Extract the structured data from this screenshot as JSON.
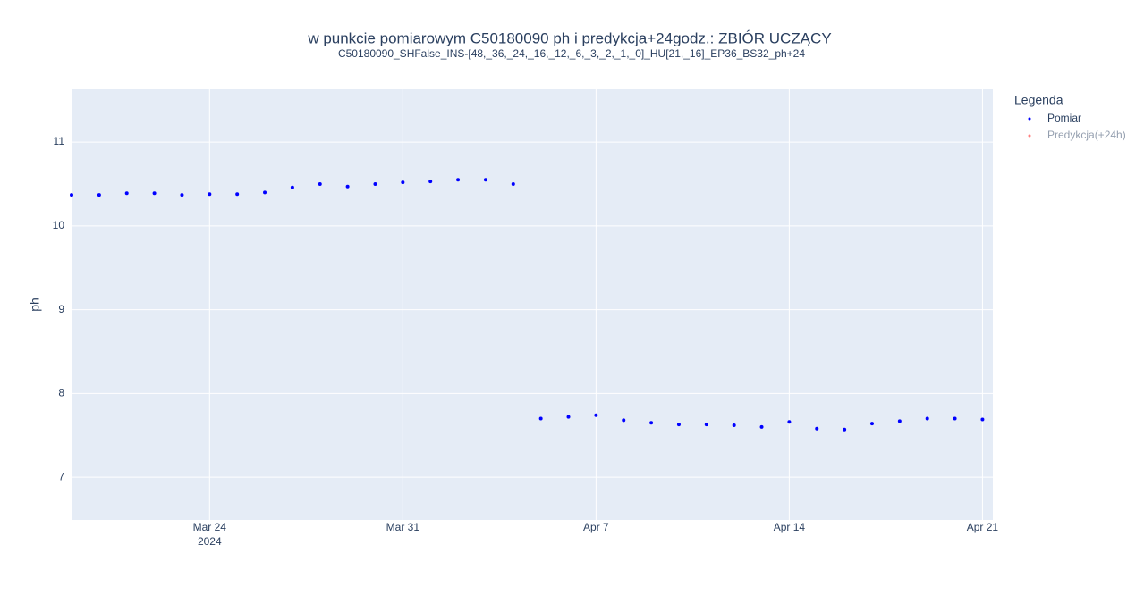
{
  "chart_data": {
    "type": "scatter",
    "title": "w punkcie pomiarowym C50180090 ph i predykcja+24godz.: ZBIÓR UCZĄCY",
    "subtitle": "C50180090_SHFalse_INS-[48,_36,_24,_16,_12,_6,_3,_2,_1,_0]_HU[21,_16]_EP36_BS32_ph+24",
    "y_label": "ph",
    "legend_title": "Legenda",
    "x": [
      "2024-03-19",
      "2024-03-20",
      "2024-03-21",
      "2024-03-22",
      "2024-03-23",
      "2024-03-24",
      "2024-03-25",
      "2024-03-26",
      "2024-03-27",
      "2024-03-28",
      "2024-03-29",
      "2024-03-30",
      "2024-03-31",
      "2024-04-01",
      "2024-04-02",
      "2024-04-03",
      "2024-04-04",
      "2024-04-05",
      "2024-04-06",
      "2024-04-07",
      "2024-04-08",
      "2024-04-09",
      "2024-04-10",
      "2024-04-11",
      "2024-04-12",
      "2024-04-13",
      "2024-04-14",
      "2024-04-15",
      "2024-04-16",
      "2024-04-17",
      "2024-04-18",
      "2024-04-19",
      "2024-04-20",
      "2024-04-21"
    ],
    "series": [
      {
        "name": "Pomiar",
        "color": "#0000ff",
        "visible": true,
        "values": [
          10.37,
          10.37,
          10.39,
          10.39,
          10.37,
          10.38,
          10.38,
          10.4,
          10.46,
          10.5,
          10.47,
          10.5,
          10.52,
          10.53,
          10.55,
          10.55,
          10.5,
          7.7,
          7.72,
          7.74,
          7.68,
          7.65,
          7.63,
          7.63,
          7.62,
          7.6,
          7.66,
          7.58,
          7.57,
          7.64,
          7.67,
          7.7,
          7.7,
          7.69
        ]
      },
      {
        "name": "Predykcja(+24h)",
        "color": "#ff0000",
        "visible": "legendonly",
        "values": [
          null,
          null,
          null,
          null,
          null,
          null,
          null,
          null,
          null,
          null,
          null,
          null,
          null,
          null,
          null,
          null,
          null,
          null,
          null,
          null,
          null,
          null,
          null,
          null,
          null,
          null,
          null,
          null,
          null,
          null,
          null,
          null,
          null,
          null
        ]
      }
    ],
    "xlim": [
      "2024-03-19T00:00",
      "2024-04-21T09:00"
    ],
    "xticks": [
      {
        "value": "2024-03-24",
        "label": "Mar 24",
        "sublabel": "2024"
      },
      {
        "value": "2024-03-31",
        "label": "Mar 31"
      },
      {
        "value": "2024-04-07",
        "label": "Apr 7"
      },
      {
        "value": "2024-04-14",
        "label": "Apr 14"
      },
      {
        "value": "2024-04-21",
        "label": "Apr 21"
      }
    ],
    "ylim": [
      6.49,
      11.63
    ],
    "yticks": [
      7,
      8,
      9,
      10,
      11
    ],
    "grid": true
  }
}
